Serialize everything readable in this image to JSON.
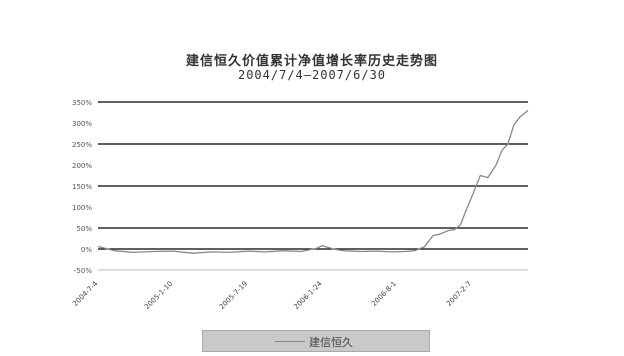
{
  "chart_data": {
    "type": "line",
    "title": "建信恒久价值累计净值增长率历史走势图",
    "subtitle": "2004/7/4—2007/6/30",
    "xlabel": "",
    "ylabel": "",
    "ytick_labels": [
      "-50%",
      "0%",
      "50%",
      "100%",
      "150%",
      "200%",
      "250%",
      "300%",
      "350%"
    ],
    "ylim": [
      -50,
      350
    ],
    "xtick_labels": [
      "2004-7-4",
      "2005-1-10",
      "2005-7-19",
      "2006-1-24",
      "2006-8-1",
      "2007-2-7"
    ],
    "gridlines_y": [
      0,
      50,
      150,
      250,
      350
    ],
    "legend": {
      "position": "bottom",
      "entries": [
        "建信恒久"
      ]
    },
    "series": [
      {
        "name": "建信恒久",
        "color": "#888888",
        "x": [
          "2004-7-4",
          "2004-8-15",
          "2004-10-1",
          "2004-11-20",
          "2005-1-10",
          "2005-3-1",
          "2005-4-20",
          "2005-6-1",
          "2005-7-19",
          "2005-9-1",
          "2005-10-15",
          "2005-12-1",
          "2006-1-10",
          "2006-1-24",
          "2006-2-20",
          "2006-3-20",
          "2006-5-1",
          "2006-6-10",
          "2006-7-20",
          "2006-8-20",
          "2006-9-15",
          "2006-10-10",
          "2006-11-1",
          "2006-11-20",
          "2006-12-10",
          "2006-12-25",
          "2007-1-10",
          "2007-1-25",
          "2007-2-10",
          "2007-3-1",
          "2007-3-20",
          "2007-4-10",
          "2007-4-25",
          "2007-5-10",
          "2007-5-25",
          "2007-6-10",
          "2007-6-30"
        ],
        "y": [
          6,
          -4,
          -8,
          -6,
          -5,
          -10,
          -7,
          -8,
          -5,
          -7,
          -4,
          -6,
          2,
          8,
          0,
          -4,
          -6,
          -5,
          -7,
          -6,
          -4,
          5,
          32,
          36,
          44,
          46,
          58,
          95,
          130,
          175,
          170,
          200,
          235,
          250,
          295,
          315,
          330
        ]
      }
    ]
  }
}
